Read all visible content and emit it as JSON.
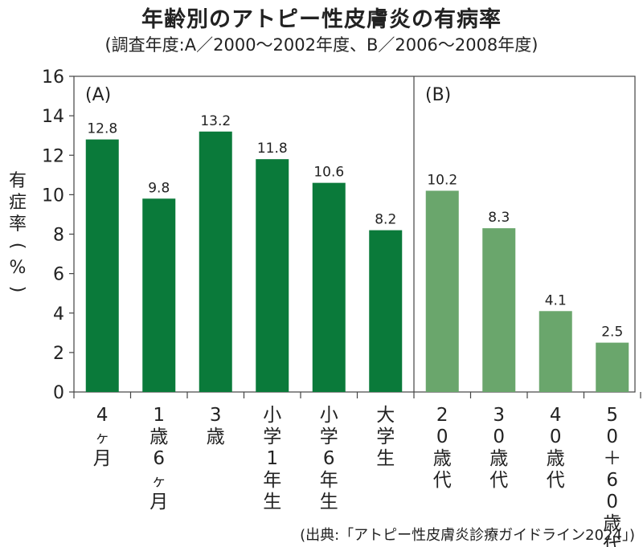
{
  "title": "年齢別のアトピー性皮膚炎の有病率",
  "subtitle": "(調査年度:A／2000〜2002年度、B／2006〜2008年度)",
  "source": "(出典:「アトピー性皮膚炎診療ガイドライン2024」)",
  "chart_data": {
    "type": "bar",
    "ylabel": "有症率(%)",
    "ylim": [
      0,
      16
    ],
    "yticks": [
      0,
      2,
      4,
      6,
      8,
      10,
      12,
      14,
      16
    ],
    "grid": false,
    "groups": [
      {
        "label": "(A)",
        "color": "#0a7a3a",
        "categories": [
          "4ヶ月",
          "1歳6ヶ月",
          "3歳",
          "小学1年生",
          "小学6年生",
          "大学生"
        ],
        "values": [
          12.8,
          9.8,
          13.2,
          11.8,
          10.6,
          8.2
        ],
        "value_labels": [
          "12.8",
          "9.8",
          "13.2",
          "11.8",
          "10.6",
          "8.2"
        ]
      },
      {
        "label": "(B)",
        "color": "#6aa66c",
        "categories": [
          "20歳代",
          "30歳代",
          "40歳代",
          "50＋60歳代"
        ],
        "values": [
          10.2,
          8.3,
          4.1,
          2.5
        ],
        "value_labels": [
          "10.2",
          "8.3",
          "4.1",
          "2.5"
        ]
      }
    ]
  }
}
